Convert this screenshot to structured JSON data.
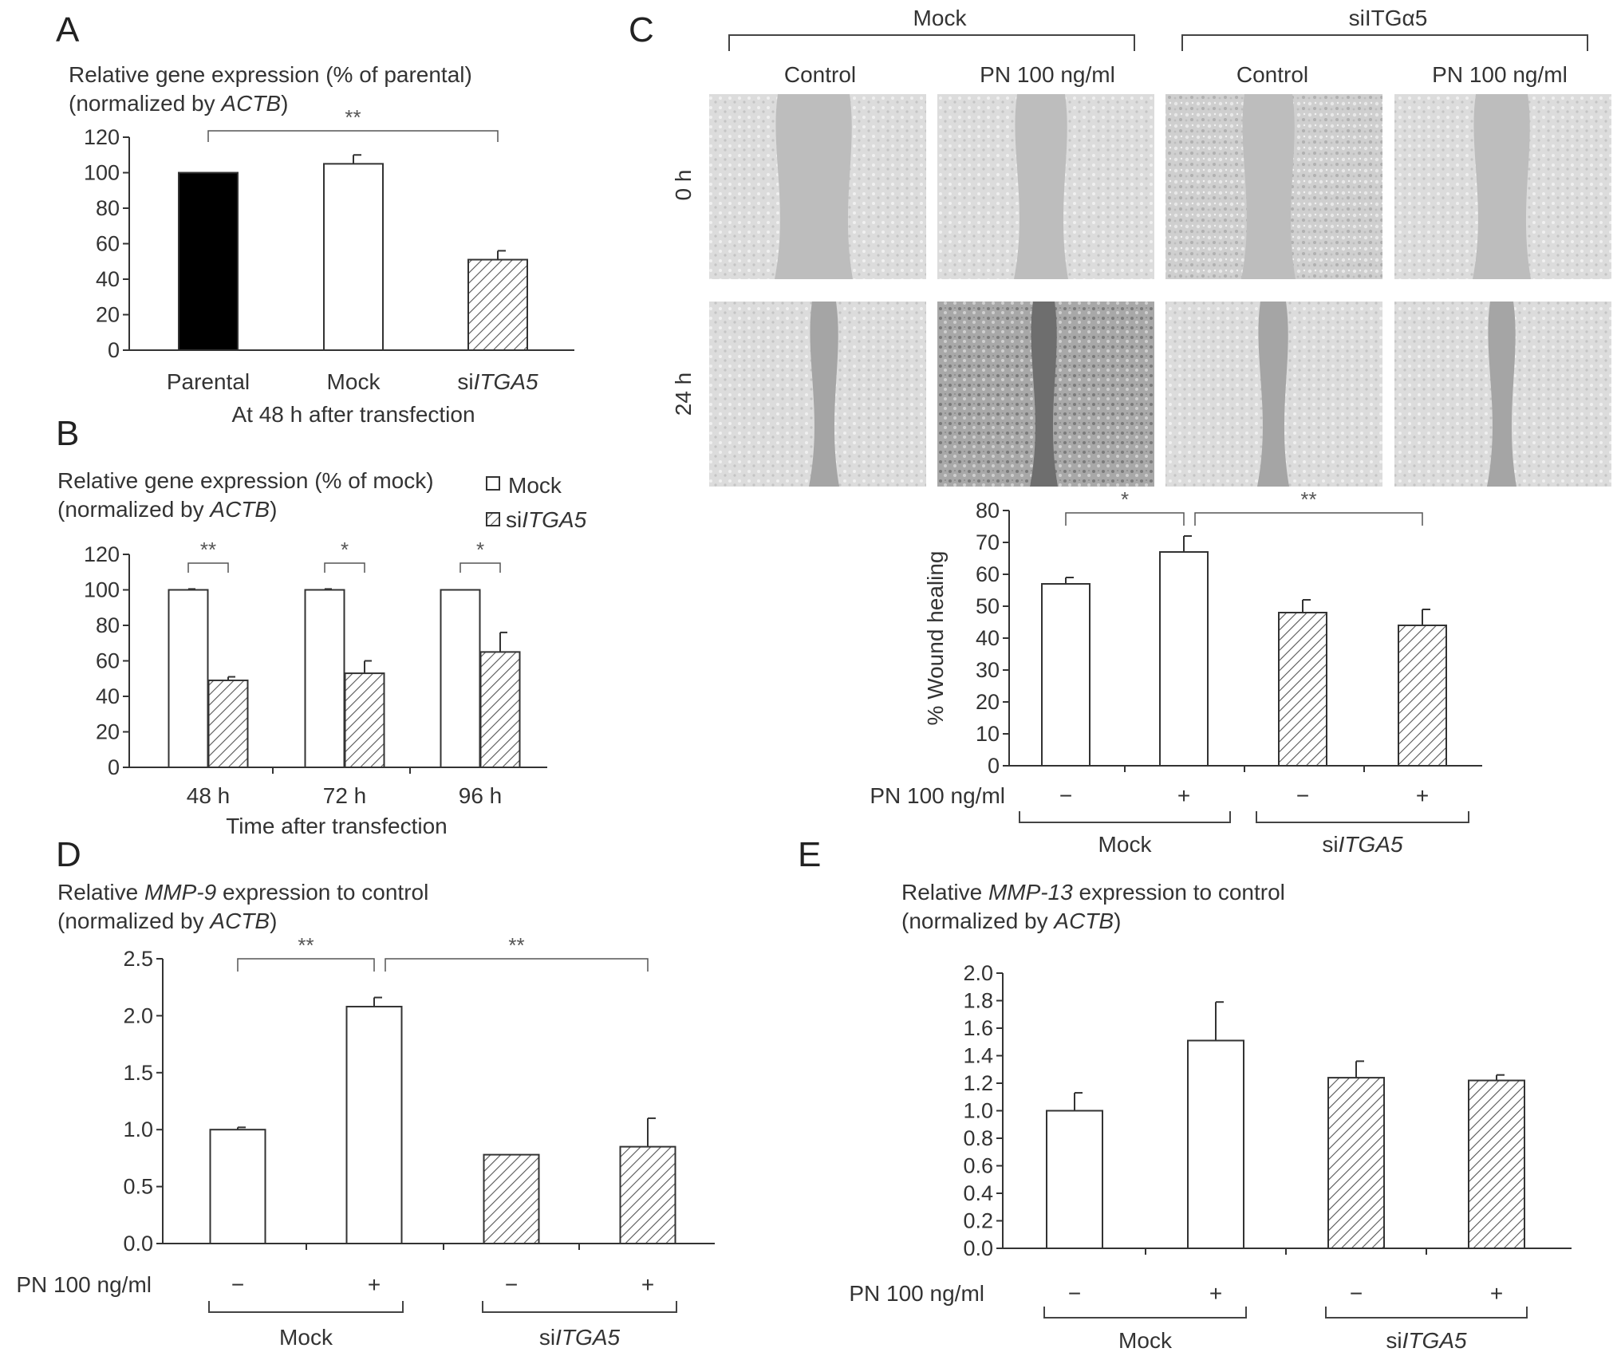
{
  "panels": {
    "A": "A",
    "B": "B",
    "C": "C",
    "D": "D",
    "E": "E"
  },
  "micrograph": {
    "top_groups": [
      "Mock",
      "siITGα5"
    ],
    "columns": [
      "Control",
      "PN 100 ng/ml",
      "Control",
      "PN 100 ng/ml"
    ],
    "rows": [
      "0 h",
      "24 h"
    ]
  },
  "chart_data": [
    {
      "id": "A",
      "type": "bar",
      "title_line1": "Relative gene expression (% of parental)",
      "title_line2_prefix": "(normalized by ",
      "title_line2_italic": "ACTB",
      "title_line2_suffix": ")",
      "categories": [
        "Parental",
        "Mock",
        "siITGA5"
      ],
      "values": [
        100,
        105,
        51
      ],
      "errors": [
        0,
        5,
        5
      ],
      "fills": [
        "black",
        "white",
        "hatch"
      ],
      "ylim": [
        0,
        120
      ],
      "yticks": [
        0,
        20,
        40,
        60,
        80,
        100,
        120
      ],
      "xlabel": "At 48 h after transfection",
      "significance": [
        {
          "from": 0,
          "to": 2,
          "label": "**"
        }
      ]
    },
    {
      "id": "B",
      "type": "bar",
      "title_line1": "Relative gene expression (% of mock)",
      "title_line2_prefix": "(normalized by ",
      "title_line2_italic": "ACTB",
      "title_line2_suffix": ")",
      "categories": [
        "48 h",
        "72 h",
        "96 h"
      ],
      "series": [
        {
          "name": "Mock",
          "values": [
            100,
            100,
            100
          ],
          "errors": [
            0.5,
            0.5,
            0
          ]
        },
        {
          "name": "siITGA5",
          "values": [
            49,
            53,
            65
          ],
          "errors": [
            2,
            7,
            11
          ]
        }
      ],
      "ylim": [
        0,
        120
      ],
      "yticks": [
        0,
        20,
        40,
        60,
        80,
        100,
        120
      ],
      "xlabel": "Time after transfection",
      "significance": [
        {
          "group": 0,
          "label": "**"
        },
        {
          "group": 1,
          "label": "*"
        },
        {
          "group": 2,
          "label": "*"
        }
      ]
    },
    {
      "id": "C",
      "type": "bar",
      "ylabel": "% Wound healing",
      "treatment_label": "PN 100 ng/ml",
      "treatment": [
        "−",
        "+",
        "−",
        "+"
      ],
      "groups": [
        "Mock",
        "siITGA5"
      ],
      "values": [
        57,
        67,
        48,
        44
      ],
      "errors": [
        2,
        5,
        4,
        5
      ],
      "fills": [
        "white",
        "white",
        "hatch",
        "hatch"
      ],
      "ylim": [
        0,
        80
      ],
      "yticks": [
        0,
        10,
        20,
        30,
        40,
        50,
        60,
        70,
        80
      ],
      "significance": [
        {
          "from": 0,
          "to": 1,
          "label": "*"
        },
        {
          "from": 1,
          "to": 3,
          "label": "**"
        }
      ]
    },
    {
      "id": "D",
      "type": "bar",
      "title_line1_prefix": "Relative ",
      "title_line1_italic": "MMP-9",
      "title_line1_suffix": " expression to control",
      "title_line2_prefix": "(normalized by ",
      "title_line2_italic": "ACTB",
      "title_line2_suffix": ")",
      "treatment_label": "PN 100 ng/ml",
      "treatment": [
        "−",
        "+",
        "−",
        "+"
      ],
      "groups": [
        "Mock",
        "siITGA5"
      ],
      "values": [
        1.0,
        2.08,
        0.78,
        0.85
      ],
      "errors": [
        0.02,
        0.08,
        0.0,
        0.25
      ],
      "fills": [
        "white",
        "white",
        "hatch",
        "hatch"
      ],
      "ylim": [
        0,
        2.5
      ],
      "yticks": [
        "0.0",
        "0.5",
        "1.0",
        "1.5",
        "2.0",
        "2.5"
      ],
      "significance": [
        {
          "from": 0,
          "to": 1,
          "label": "**"
        },
        {
          "from": 1,
          "to": 3,
          "label": "**"
        }
      ]
    },
    {
      "id": "E",
      "type": "bar",
      "title_line1_prefix": "Relative ",
      "title_line1_italic": "MMP-13",
      "title_line1_suffix": " expression to control",
      "title_line2_prefix": "(normalized by ",
      "title_line2_italic": "ACTB",
      "title_line2_suffix": ")",
      "treatment_label": "PN 100 ng/ml",
      "treatment": [
        "−",
        "+",
        "−",
        "+"
      ],
      "groups": [
        "Mock",
        "siITGA5"
      ],
      "values": [
        1.0,
        1.51,
        1.24,
        1.22
      ],
      "errors": [
        0.13,
        0.28,
        0.12,
        0.04
      ],
      "fills": [
        "white",
        "white",
        "hatch",
        "hatch"
      ],
      "ylim": [
        0,
        2.0
      ],
      "yticks": [
        "0.0",
        "0.2",
        "0.4",
        "0.6",
        "0.8",
        "1.0",
        "1.2",
        "1.4",
        "1.6",
        "1.8",
        "2.0"
      ],
      "significance": []
    }
  ]
}
